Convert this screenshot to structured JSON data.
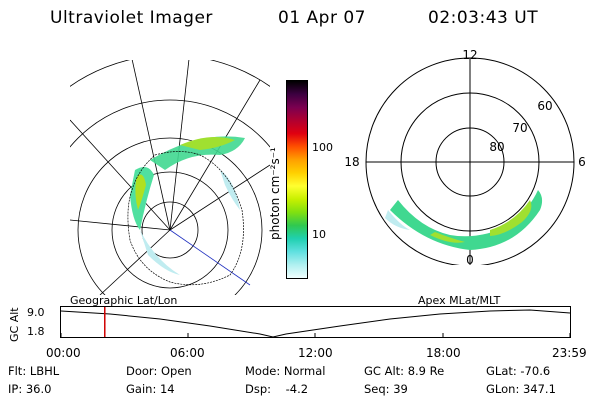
{
  "header": {
    "title": "Ultraviolet Imager",
    "date": "01 Apr 07",
    "time": "02:03:43 UT"
  },
  "colorbar": {
    "label": "photon cm⁻²s⁻¹",
    "ticks": [
      "100",
      "10"
    ],
    "colors": [
      "#000000",
      "#3c0040",
      "#7a0050",
      "#b00030",
      "#e00010",
      "#ff5000",
      "#ffa000",
      "#ffd000",
      "#ffff30",
      "#c8f000",
      "#80e010",
      "#30c850",
      "#20d0b0",
      "#60e0e0",
      "#b0f0f0",
      "#f0ffff"
    ]
  },
  "geo_map": {
    "label": "Geographic Lat/Lon"
  },
  "polar_plot": {
    "label": "Apex  MLat/MLT",
    "mlt_labels": {
      "top": "12",
      "bottom": "0",
      "left": "18",
      "right": "6"
    },
    "lat_labels": [
      "60",
      "70",
      "80"
    ]
  },
  "timeline": {
    "y_axis_label": "GC Alt",
    "y_ticks": [
      "9.0",
      "1.8"
    ],
    "x_ticks": [
      "00:00",
      "06:00",
      "12:00",
      "18:00",
      "23:59"
    ],
    "current_time_fraction": 0.086
  },
  "status": {
    "flt": "Flt: LBHL",
    "door": "Door: Open",
    "mode": "Mode: Normal",
    "gc_alt": "GC Alt: 8.9 Re",
    "glat": "GLat: -70.6",
    "ip": "IP: 36.0",
    "gain": "Gain: 14",
    "dsp": "Dsp:    -4.2",
    "seq": "Seq: 39",
    "glon": "GLon: 347.1"
  }
}
